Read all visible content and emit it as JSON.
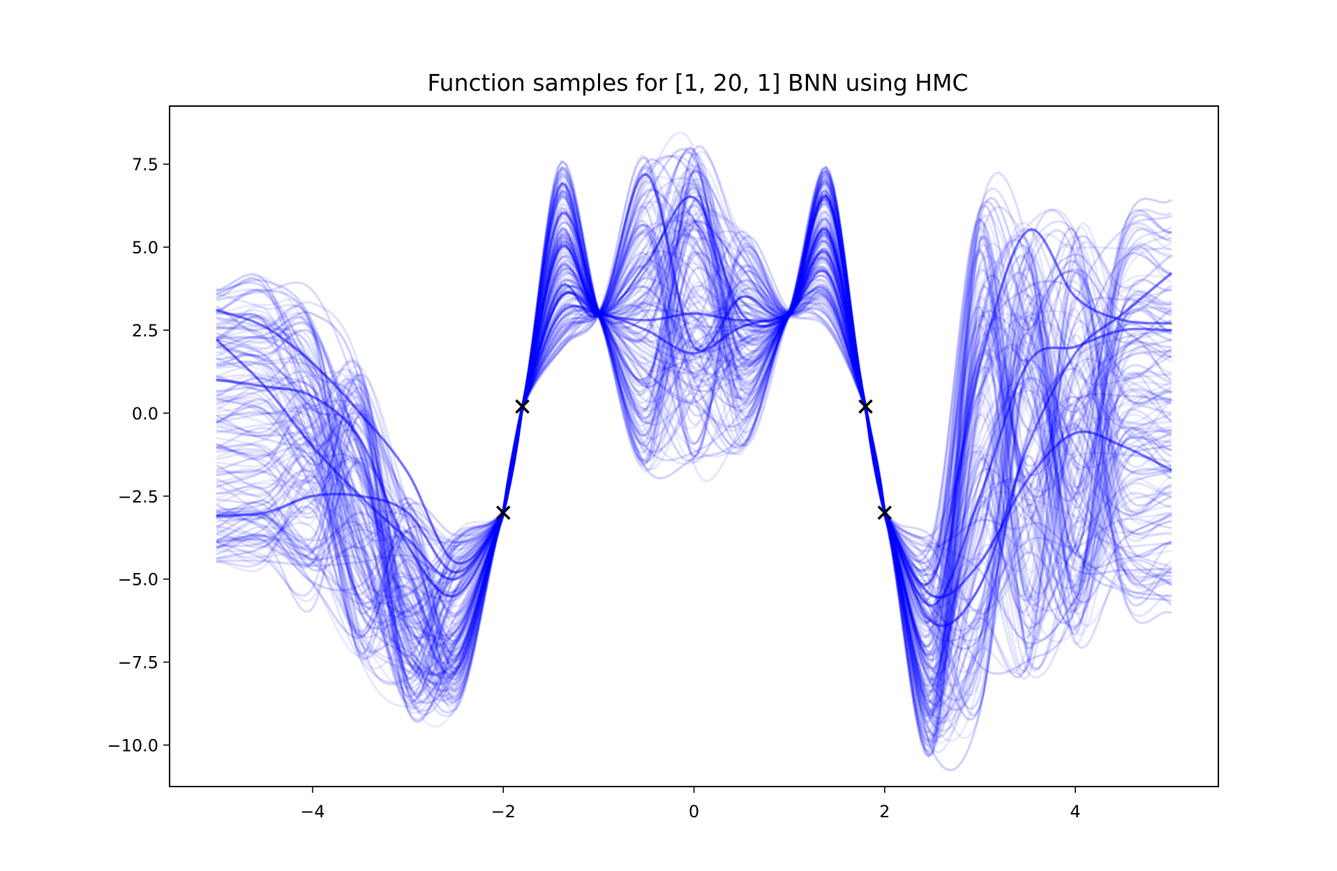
{
  "chart_data": {
    "type": "line",
    "title": "Function samples for [1, 20, 1] BNN using HMC",
    "xlabel": "",
    "ylabel": "",
    "xlim": [
      -5.5,
      5.5
    ],
    "ylim": [
      -11.25,
      9.25
    ],
    "x_ticks": [
      {
        "value": -4,
        "label": "−4"
      },
      {
        "value": -2,
        "label": "−2"
      },
      {
        "value": 0,
        "label": "0"
      },
      {
        "value": 2,
        "label": "2"
      },
      {
        "value": 4,
        "label": "4"
      }
    ],
    "y_ticks": [
      {
        "value": 7.5,
        "label": "7.5"
      },
      {
        "value": 5.0,
        "label": "5.0"
      },
      {
        "value": 2.5,
        "label": "2.5"
      },
      {
        "value": 0.0,
        "label": "0.0"
      },
      {
        "value": -2.5,
        "label": "−2.5"
      },
      {
        "value": -5.0,
        "label": "−5.0"
      },
      {
        "value": -7.5,
        "label": "−7.5"
      },
      {
        "value": -10.0,
        "label": "−10.0"
      }
    ],
    "grid": false,
    "legend": "none",
    "line_color": "#0000ff",
    "marker_color": "#000000",
    "x_range_of_samples": [
      -5,
      5
    ],
    "num_samples": 150,
    "observations": [
      {
        "x": -2.0,
        "y": -3.0
      },
      {
        "x": -1.8,
        "y": 0.2
      },
      {
        "x": 1.8,
        "y": 0.2
      },
      {
        "x": 2.0,
        "y": -3.0
      }
    ],
    "anchor_points": [
      {
        "x": -1.0,
        "y": 3.0
      },
      {
        "x": 1.0,
        "y": 3.0
      }
    ],
    "series": [
      {
        "x": [
          -5,
          -4.5,
          -4,
          -3.5,
          -3,
          -2.5,
          -2,
          -1.8,
          -1.4,
          -1,
          -0.5,
          0,
          0.5,
          1,
          1.4,
          1.8,
          2,
          2.5,
          3,
          3.5,
          4,
          4.5,
          5
        ],
        "values": [
          3.1,
          2.6,
          1.5,
          0.0,
          -1.8,
          -4.5,
          -3.0,
          0.2,
          3.5,
          3.0,
          2.8,
          3.0,
          2.8,
          3.0,
          4.8,
          0.2,
          -3.0,
          -6.3,
          -5.2,
          -1.0,
          1.8,
          3.0,
          4.2
        ]
      },
      {
        "x": [
          -5,
          -4.5,
          -4,
          -3.5,
          -3,
          -2.5,
          -2,
          -1.8,
          -1.4,
          -1,
          -0.5,
          0,
          0.5,
          1,
          1.4,
          1.8,
          2,
          2.5,
          3,
          3.5,
          4,
          4.5,
          5
        ],
        "values": [
          2.2,
          0.8,
          -1.0,
          -2.5,
          -3.8,
          -5.0,
          -3.0,
          0.2,
          3.0,
          3.0,
          2.5,
          1.8,
          2.6,
          3.0,
          4.2,
          0.2,
          -3.0,
          -5.5,
          -4.5,
          -2.0,
          -0.6,
          -1.0,
          -1.7
        ]
      },
      {
        "x": [
          -5,
          -4.5,
          -4,
          -3.5,
          -3,
          -2.5,
          -2,
          -1.8,
          -1.4,
          -1,
          -0.5,
          0,
          0.5,
          1,
          1.4,
          1.8,
          2,
          2.5,
          3,
          3.5,
          4,
          4.5,
          5
        ],
        "values": [
          1.0,
          0.8,
          0.5,
          -0.8,
          -4.0,
          -5.5,
          -3.0,
          0.2,
          5.0,
          3.0,
          4.5,
          6.5,
          3.0,
          3.0,
          5.5,
          0.2,
          -3.0,
          -5.0,
          1.5,
          5.5,
          3.5,
          2.8,
          2.7
        ]
      },
      {
        "x": [
          -5,
          -4.5,
          -4,
          -3.5,
          -3,
          -2.5,
          -2,
          -1.8,
          -1.4,
          -1,
          -0.5,
          0,
          0.5,
          1,
          1.4,
          1.8,
          2,
          2.5,
          3,
          3.5,
          4,
          4.5,
          5
        ],
        "values": [
          -3.1,
          -3.0,
          -2.5,
          -2.5,
          -3.0,
          -4.8,
          -3.0,
          0.2,
          3.8,
          3.0,
          7.2,
          2.0,
          3.5,
          3.0,
          6.5,
          0.2,
          -3.0,
          -5.8,
          -2.5,
          1.5,
          2.0,
          2.5,
          2.5
        ]
      }
    ]
  }
}
